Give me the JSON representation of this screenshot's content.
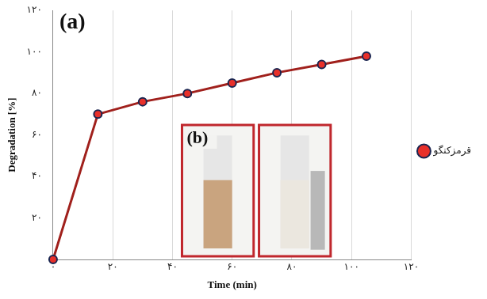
{
  "chart_data": {
    "type": "line",
    "x_label": "Time (min)",
    "y_label": "Degradation [%]",
    "annotations": [
      "(a)",
      "(b)"
    ],
    "x": [
      0,
      15,
      30,
      45,
      60,
      75,
      90,
      105
    ],
    "series": [
      {
        "name": "قرمزکنگو",
        "color": "#a0201c",
        "marker": "circle",
        "line_style": "solid",
        "values": [
          0,
          70,
          76,
          80,
          85,
          90,
          94,
          98
        ]
      }
    ],
    "xlim": [
      0,
      120
    ],
    "xticks": [
      {
        "value": 0,
        "label": "۰"
      },
      {
        "value": 20,
        "label": "۲۰"
      },
      {
        "value": 40,
        "label": "۴۰"
      },
      {
        "value": 60,
        "label": "۶۰"
      },
      {
        "value": 80,
        "label": "۸۰"
      },
      {
        "value": 100,
        "label": "۱۰۰"
      },
      {
        "value": 120,
        "label": "۱۲۰"
      }
    ],
    "ylim": [
      0,
      120
    ],
    "yticks": [
      {
        "value": 20,
        "label": "۲۰"
      },
      {
        "value": 40,
        "label": "۴۰"
      },
      {
        "value": 60,
        "label": "۶۰"
      },
      {
        "value": 80,
        "label": "۸۰"
      },
      {
        "value": 100,
        "label": "۱۰۰"
      },
      {
        "value": 120,
        "label": "۱۲۰"
      }
    ],
    "grid": "x",
    "legend": "right"
  }
}
